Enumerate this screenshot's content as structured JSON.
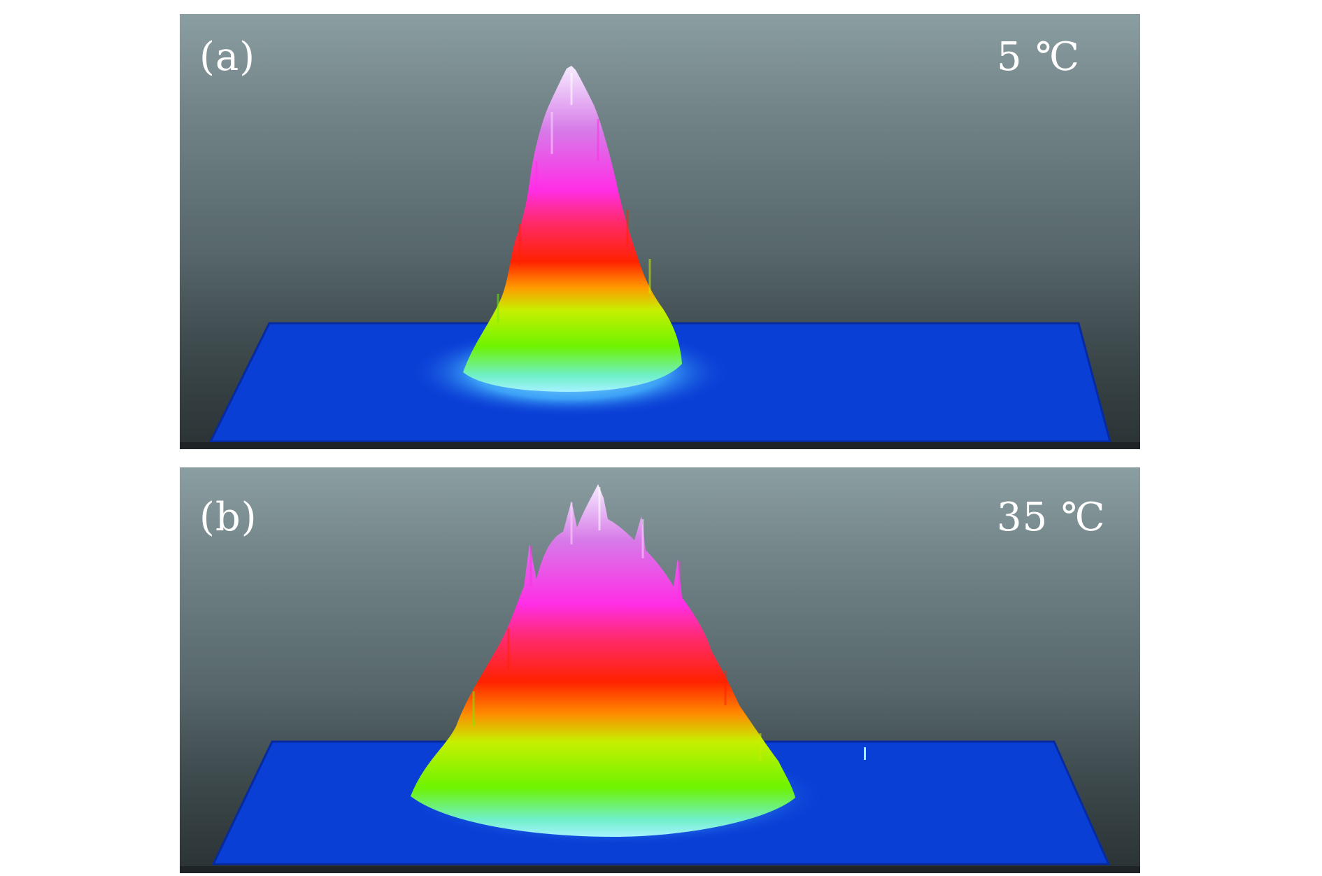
{
  "panels": [
    {
      "id": "a",
      "letter": "(a)",
      "temperature": "5 ℃",
      "peak_count": 1
    },
    {
      "id": "b",
      "letter": "(b)",
      "temperature": "35 ℃",
      "peak_count": 1
    }
  ],
  "colors": {
    "base_plane": "#0a3fd6",
    "cyan_rim": "#7fe8ff",
    "green_band": "#7cf000",
    "yellow_band": "#e8f000",
    "red_band": "#ff2a00",
    "magenta_band": "#ff2ad8",
    "peak_tip": "#f4e6ff",
    "background_top": "#8b9ea2",
    "background_bottom": "#2a3234"
  }
}
